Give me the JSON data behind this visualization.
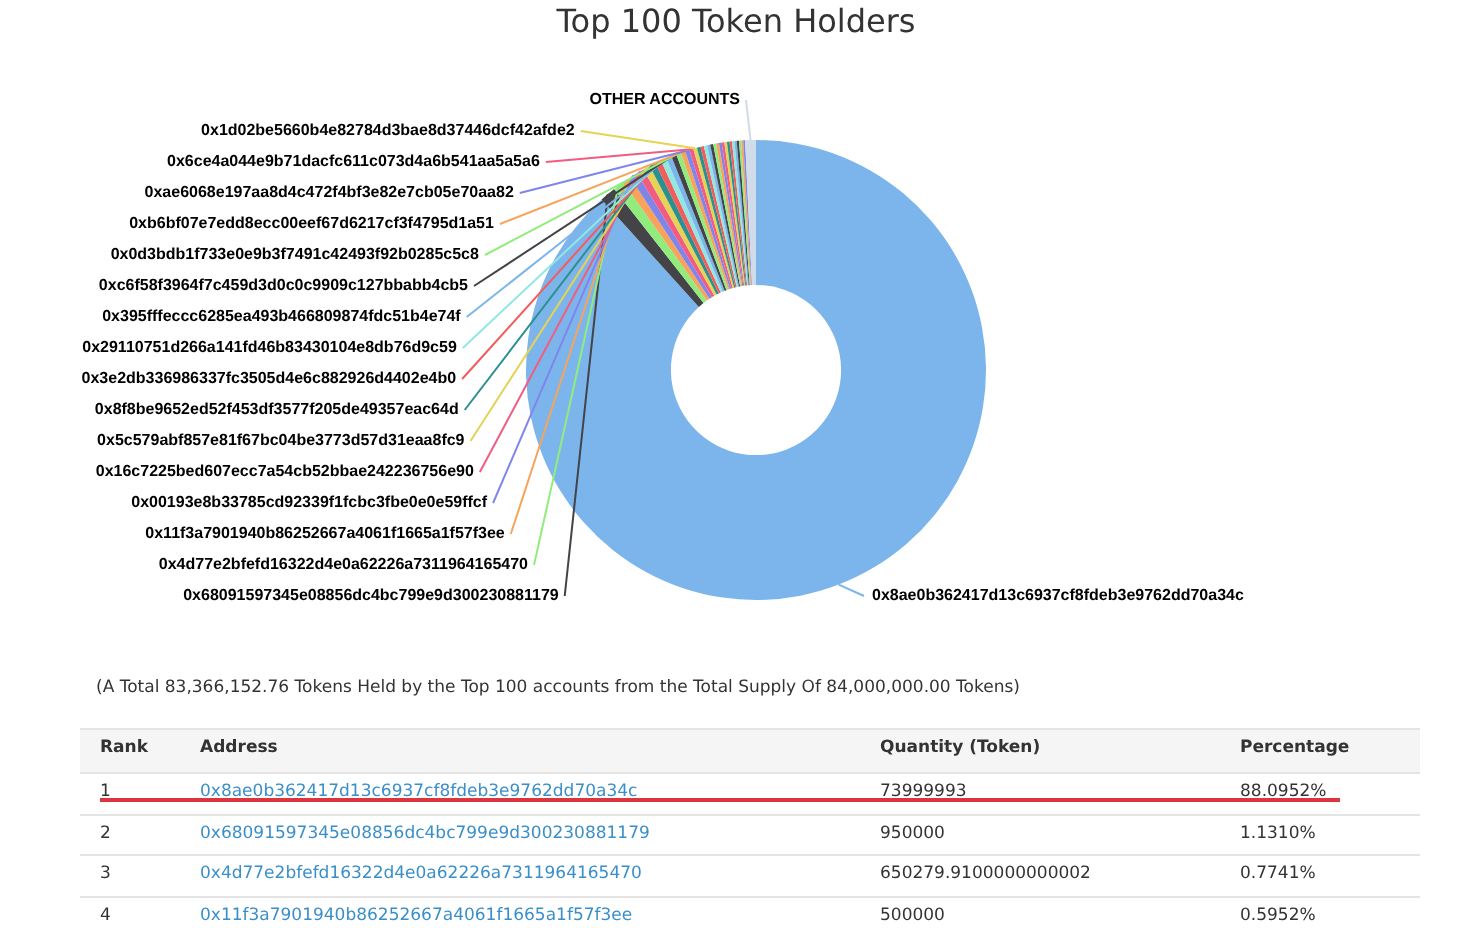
{
  "chart_data": {
    "type": "donut",
    "title": "Top 100 Token Holders",
    "categories": [
      "0x8ae0b362417d13c6937cf8fdeb3e9762dd70a34c",
      "0x68091597345e08856dc4bc799e9d300230881179",
      "0x4d77e2bfefd16322d4e0a62226a7311964165470",
      "0x11f3a7901940b86252667a4061f1665a1f57f3ee",
      "0x00193e8b33785cd92339f1fcbc3fbe0e0e59ffcf",
      "0x16c7225bed607ecc7a54cb52bbae242236756e90",
      "0x5c579abf857e81f67bc04be3773d57d31eaa8fc9",
      "0x8f8be9652ed52f453df3577f205de49357eac64d",
      "0x3e2db336986337fc3505d4e6c882926d4402e4b0",
      "0x29110751d266a141fd46b83430104e8db76d9c59",
      "0x395fffeccc6285ea493b466809874fdc51b4e74f",
      "0xc6f58f3964f7c459d3d0c0c9909c127bbabb4cb5",
      "0x0d3bdb1f733e0e9b3f7491c42493f92b0285c5c8",
      "0xb6bf07e7edd8ecc00eef67d6217cf3f4795d1a51",
      "0xae6068e197aa8d4c472f4bf3e82e7cb05e70aa82",
      "0x6ce4a044e9b71dacfc611c073d4a6b541aa5a5a6",
      "0x1d02be5660b4e82784d3bae8d37446dcf42afde2",
      null,
      null,
      null,
      null,
      null,
      null,
      null,
      null,
      null,
      null,
      null,
      null,
      null,
      null,
      null,
      null,
      null,
      null,
      "OTHER ACCOUNTS"
    ],
    "values": [
      88.0952,
      1.131,
      0.7741,
      0.5952,
      0.55,
      0.52,
      0.48,
      0.45,
      0.42,
      0.4,
      0.38,
      0.36,
      0.34,
      0.32,
      0.3,
      0.28,
      0.26,
      0.25,
      0.24,
      0.23,
      0.22,
      0.21,
      0.2,
      0.2,
      0.19,
      0.19,
      0.18,
      0.18,
      0.17,
      0.17,
      0.16,
      0.16,
      0.15,
      0.14,
      0.1299,
      0.7546
    ],
    "colors": [
      "#7cb5ec",
      "#434348",
      "#90ed7d",
      "#f7a35c",
      "#8085e9",
      "#f15c80",
      "#e4d354",
      "#2b908f",
      "#f45b5b",
      "#91e8e1",
      "#7cb5ec",
      "#434348",
      "#90ed7d",
      "#f7a35c",
      "#8085e9",
      "#f15c80",
      "#e4d354",
      "#2b908f",
      "#f45b5b",
      "#91e8e1",
      "#7cb5ec",
      "#434348",
      "#90ed7d",
      "#f7a35c",
      "#8085e9",
      "#f15c80",
      "#e4d354",
      "#2b908f",
      "#f45b5b",
      "#91e8e1",
      "#7cb5ec",
      "#434348",
      "#90ed7d",
      "#f7a35c",
      "#8085e9",
      "#d0dce8"
    ],
    "annotations": [
      "(A Total 83,366,152.76 Tokens Held by the Top 100 accounts from the Total Supply Of 84,000,000.00 Tokens)",
      "Rank",
      "Address",
      "Quantity (Token)",
      "Percentage",
      "1",
      "0x8ae0b362417d13c6937cf8fdeb3e9762dd70a34c",
      "73999993",
      "88.0952%",
      "2",
      "0x68091597345e08856dc4bc799e9d300230881179",
      "950000",
      "1.1310%",
      "3",
      "0x4d77e2bfefd16322d4e0a62226a7311964165470",
      "650279.9100000000002",
      "0.7741%",
      "4",
      "0x11f3a7901940b86252667a4061f1665a1f57f3ee",
      "500000",
      "0.5952%"
    ],
    "legend": false
  }
}
